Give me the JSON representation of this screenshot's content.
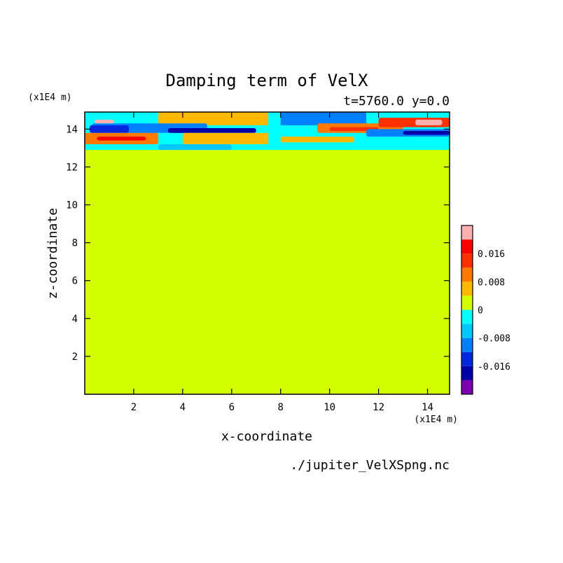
{
  "chart_data": {
    "type": "heatmap",
    "title": "Damping term of VelX",
    "subtitle": "t=5760.0 y=0.0",
    "xlabel": "x-coordinate",
    "ylabel": "z-coordinate",
    "x_unit": "(x1E4 m)",
    "y_unit": "(x1E4 m)",
    "source": "./jupiter_VelXSpng.nc",
    "xlim": [
      0,
      14.9
    ],
    "ylim": [
      0,
      14.9
    ],
    "x_ticks": [
      2,
      4,
      6,
      8,
      10,
      12,
      14
    ],
    "y_ticks": [
      2,
      4,
      6,
      8,
      10,
      12,
      14
    ],
    "grid": false,
    "colorbar": {
      "ticks": [
        {
          "value": 0.016,
          "label": "0.016"
        },
        {
          "value": 0.008,
          "label": "0.008"
        },
        {
          "value": 0,
          "label": "0"
        },
        {
          "value": -0.008,
          "label": "-0.008"
        },
        {
          "value": -0.016,
          "label": "-0.016"
        }
      ],
      "levels": [
        {
          "min": -0.024,
          "max": -0.02,
          "color": "#7a00b0"
        },
        {
          "min": -0.02,
          "max": -0.016,
          "color": "#0000a8"
        },
        {
          "min": -0.016,
          "max": -0.012,
          "color": "#0028e0"
        },
        {
          "min": -0.012,
          "max": -0.008,
          "color": "#0080ff"
        },
        {
          "min": -0.008,
          "max": -0.004,
          "color": "#00c8ff"
        },
        {
          "min": -0.004,
          "max": 0.0,
          "color": "#00ffff"
        },
        {
          "min": 0.0,
          "max": 0.004,
          "color": "#d4ff00"
        },
        {
          "min": 0.004,
          "max": 0.008,
          "color": "#ffb800"
        },
        {
          "min": 0.008,
          "max": 0.012,
          "color": "#ff7800"
        },
        {
          "min": 0.012,
          "max": 0.016,
          "color": "#ff3000"
        },
        {
          "min": 0.016,
          "max": 0.02,
          "color": "#ff0000"
        },
        {
          "min": 0.02,
          "max": 0.024,
          "color": "#ffb0b0"
        }
      ]
    },
    "background_value": 0.001,
    "bands": [
      {
        "x": [
          0,
          14.9
        ],
        "z": [
          12.9,
          14.9
        ],
        "value": -0.003
      },
      {
        "x": [
          3.0,
          7.5
        ],
        "z": [
          14.2,
          14.9
        ],
        "value": 0.006
      },
      {
        "x": [
          0.3,
          5.0
        ],
        "z": [
          13.8,
          14.3
        ],
        "value": -0.011
      },
      {
        "x": [
          3.4,
          7.0
        ],
        "z": [
          13.8,
          14.05
        ],
        "value": -0.019
      },
      {
        "x": [
          0.2,
          1.8
        ],
        "z": [
          13.8,
          14.2
        ],
        "value": -0.014
      },
      {
        "x": [
          0,
          3.0
        ],
        "z": [
          13.2,
          13.8
        ],
        "value": 0.009
      },
      {
        "x": [
          0.5,
          2.5
        ],
        "z": [
          13.4,
          13.6
        ],
        "value": 0.017
      },
      {
        "x": [
          4.0,
          8.0
        ],
        "z": [
          13.2,
          13.8
        ],
        "value": 0.006
      },
      {
        "x": [
          3.0,
          6.0
        ],
        "z": [
          12.9,
          13.2
        ],
        "value": -0.005
      },
      {
        "x": [
          0.4,
          1.2
        ],
        "z": [
          14.3,
          14.5
        ],
        "value": 0.022
      },
      {
        "x": [
          0.6,
          1.0
        ],
        "z": [
          14.35,
          14.45
        ],
        "value": 0.023
      },
      {
        "x": [
          7.6,
          11.5
        ],
        "z": [
          14.2,
          14.9
        ],
        "value": -0.011
      },
      {
        "x": [
          9.5,
          13.0
        ],
        "z": [
          13.8,
          14.3
        ],
        "value": 0.011
      },
      {
        "x": [
          10.0,
          12.0
        ],
        "z": [
          13.9,
          14.1
        ],
        "value": 0.015
      },
      {
        "x": [
          12.0,
          14.9
        ],
        "z": [
          14.1,
          14.6
        ],
        "value": 0.014
      },
      {
        "x": [
          13.5,
          14.6
        ],
        "z": [
          14.2,
          14.5
        ],
        "value": 0.023
      },
      {
        "x": [
          11.5,
          14.9
        ],
        "z": [
          13.6,
          14.0
        ],
        "value": -0.012
      },
      {
        "x": [
          13.0,
          14.9
        ],
        "z": [
          13.7,
          13.9
        ],
        "value": -0.018
      },
      {
        "x": [
          8.0,
          11.0
        ],
        "z": [
          13.3,
          13.6
        ],
        "value": 0.006
      },
      {
        "x": [
          7.5,
          8.0
        ],
        "z": [
          13.0,
          14.9
        ],
        "value": -0.002
      }
    ]
  }
}
